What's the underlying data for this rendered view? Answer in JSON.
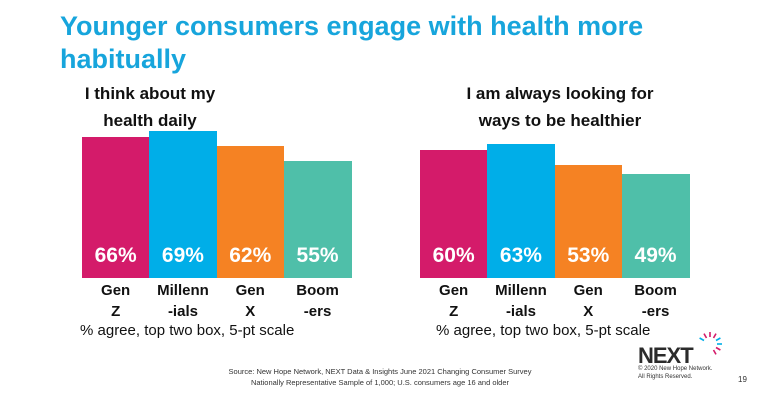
{
  "title": "Younger consumers engage with health more habitually",
  "colors": [
    "#d41b6a",
    "#00aee8",
    "#f58223",
    "#4fbfa9"
  ],
  "chart_data": [
    {
      "type": "bar",
      "title": "I think about my health daily",
      "categories": [
        [
          "Gen",
          "Z"
        ],
        [
          "Millenn",
          "-ials"
        ],
        [
          "Gen",
          "X"
        ],
        [
          "Boom",
          "-ers"
        ]
      ],
      "values": [
        66,
        69,
        62,
        55
      ],
      "value_labels": [
        "66%",
        "69%",
        "62%",
        "55%"
      ],
      "note": "% agree, top two box, 5-pt scale",
      "ylim": [
        0,
        100
      ]
    },
    {
      "type": "bar",
      "title": "I am always looking for ways to be healthier",
      "categories": [
        [
          "Gen",
          "Z"
        ],
        [
          "Millenn",
          "-ials"
        ],
        [
          "Gen",
          "X"
        ],
        [
          "Boom",
          "-ers"
        ]
      ],
      "values": [
        60,
        63,
        53,
        49
      ],
      "value_labels": [
        "60%",
        "63%",
        "53%",
        "49%"
      ],
      "note": "% agree, top two box, 5-pt scale",
      "ylim": [
        0,
        100
      ]
    }
  ],
  "source": {
    "line1": "Source: New Hope Network, NEXT Data & Insights June 2021 Changing Consumer Survey",
    "line2": "Nationally Representative Sample of 1,000; U.S. consumers age 16 and older"
  },
  "logo": {
    "text": "NEXT",
    "copyright1": "© 2020 New Hope Network.",
    "copyright2": "All Rights Reserved."
  },
  "page_number": "19"
}
